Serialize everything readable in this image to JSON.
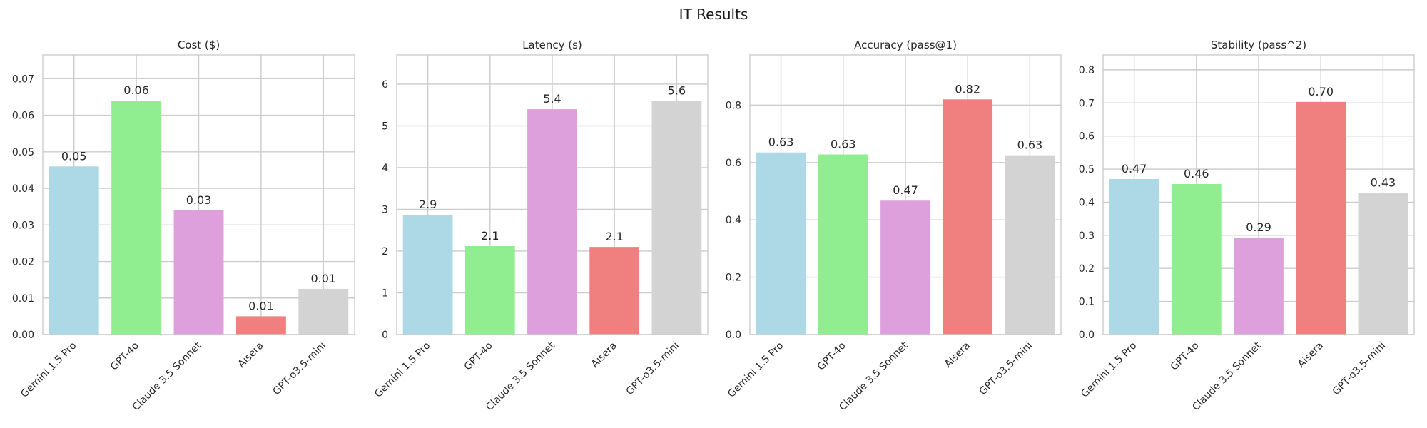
{
  "figure": {
    "title": "IT Results"
  },
  "chart_data": [
    {
      "type": "bar",
      "title": "Cost ($)",
      "categories": [
        "Gemini 1.5 Pro",
        "GPT-4o",
        "Claude 3.5 Sonnet",
        "Aisera",
        "GPT-o3.5-mini"
      ],
      "values": [
        0.046,
        0.064,
        0.034,
        0.005,
        0.0125
      ],
      "labels": [
        "0.05",
        "0.06",
        "0.03",
        "0.01",
        "0.01"
      ],
      "colors": [
        "#add8e6",
        "#90ee90",
        "#dda0dd",
        "#f08080",
        "#d3d3d3"
      ],
      "ylim": [
        0,
        0.0765
      ],
      "yticks": [
        0,
        0.01,
        0.02,
        0.03,
        0.04,
        0.05,
        0.06,
        0.07
      ],
      "ytick_labels": [
        "0.00",
        "0.01",
        "0.02",
        "0.03",
        "0.04",
        "0.05",
        "0.06",
        "0.07"
      ],
      "grid": true
    },
    {
      "type": "bar",
      "title": "Latency (s)",
      "categories": [
        "Gemini 1.5 Pro",
        "GPT-4o",
        "Claude 3.5 Sonnet",
        "Aisera",
        "GPT-o3.5-mini"
      ],
      "values": [
        2.87,
        2.12,
        5.4,
        2.1,
        5.6
      ],
      "labels": [
        "2.9",
        "2.1",
        "5.4",
        "2.1",
        "5.6"
      ],
      "colors": [
        "#add8e6",
        "#90ee90",
        "#dda0dd",
        "#f08080",
        "#d3d3d3"
      ],
      "ylim": [
        0,
        6.7
      ],
      "yticks": [
        0,
        1,
        2,
        3,
        4,
        5,
        6
      ],
      "ytick_labels": [
        "0",
        "1",
        "2",
        "3",
        "4",
        "5",
        "6"
      ],
      "grid": true
    },
    {
      "type": "bar",
      "title": "Accuracy (pass@1)",
      "categories": [
        "Gemini 1.5 Pro",
        "GPT-4o",
        "Claude 3.5 Sonnet",
        "Aisera",
        "GPT-o3.5-mini"
      ],
      "values": [
        0.635,
        0.628,
        0.467,
        0.82,
        0.625
      ],
      "labels": [
        "0.63",
        "0.63",
        "0.47",
        "0.82",
        "0.63"
      ],
      "colors": [
        "#add8e6",
        "#90ee90",
        "#dda0dd",
        "#f08080",
        "#d3d3d3"
      ],
      "ylim": [
        0,
        0.975
      ],
      "yticks": [
        0,
        0.2,
        0.4,
        0.6,
        0.8
      ],
      "ytick_labels": [
        "0.0",
        "0.2",
        "0.4",
        "0.6",
        "0.8"
      ],
      "grid": true
    },
    {
      "type": "bar",
      "title": "Stability (pass^2)",
      "categories": [
        "Gemini 1.5 Pro",
        "GPT-4o",
        "Claude 3.5 Sonnet",
        "Aisera",
        "GPT-o3.5-mini"
      ],
      "values": [
        0.47,
        0.455,
        0.293,
        0.703,
        0.428
      ],
      "labels": [
        "0.47",
        "0.46",
        "0.29",
        "0.70",
        "0.43"
      ],
      "colors": [
        "#add8e6",
        "#90ee90",
        "#dda0dd",
        "#f08080",
        "#d3d3d3"
      ],
      "ylim": [
        0,
        0.845
      ],
      "yticks": [
        0,
        0.1,
        0.2,
        0.3,
        0.4,
        0.5,
        0.6,
        0.7,
        0.8
      ],
      "ytick_labels": [
        "0.0",
        "0.1",
        "0.2",
        "0.3",
        "0.4",
        "0.5",
        "0.6",
        "0.7",
        "0.8"
      ],
      "grid": true
    }
  ]
}
